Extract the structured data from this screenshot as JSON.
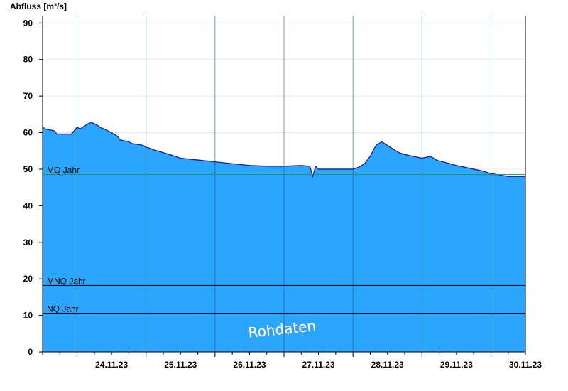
{
  "chart_data": {
    "type": "area",
    "ylabel": "Abfluss [m³/s]",
    "ylim": [
      0,
      92
    ],
    "yticks": [
      0,
      10,
      20,
      30,
      40,
      50,
      60,
      70,
      80,
      90
    ],
    "xlim": [
      "23.11.23 12:00",
      "30.11.23 12:00"
    ],
    "xtick_labels": [
      "24.11.23",
      "25.11.23",
      "26.11.23",
      "27.11.23",
      "28.11.23",
      "29.11.23",
      "30.11.23"
    ],
    "grid": true,
    "colors": {
      "fill": "#2ba6ff",
      "line": "#1a1aa0",
      "mq_line": "#2e8b57",
      "ref_line": "#000000"
    },
    "reference_lines": [
      {
        "label": "MQ Jahr",
        "value": 48.5
      },
      {
        "label": "MNQ Jahr",
        "value": 18.2
      },
      {
        "label": "NQ Jahr",
        "value": 10.6
      }
    ],
    "watermark": "Rohdaten",
    "series": [
      {
        "x": [
          "23.11.23 12:00",
          "23.11.23 13:00",
          "23.11.23 16:00",
          "23.11.23 17:00",
          "23.11.23 18:00",
          "23.11.23 22:00",
          "23.11.23 23:00",
          "24.11.23 00:00",
          "24.11.23 01:00",
          "24.11.23 02:00",
          "24.11.23 04:00",
          "24.11.23 05:00",
          "24.11.23 07:00",
          "24.11.23 08:00",
          "24.11.23 10:00",
          "24.11.23 12:00",
          "24.11.23 14:00",
          "24.11.23 15:00",
          "24.11.23 18:00",
          "24.11.23 19:00",
          "24.11.23 21:00",
          "24.11.23 23:00",
          "25.11.23 00:00",
          "25.11.23 01:00",
          "25.11.23 02:00",
          "25.11.23 03:00",
          "25.11.23 04:00",
          "25.11.23 06:00",
          "25.11.23 09:00",
          "25.11.23 12:00",
          "25.11.23 18:00",
          "26.11.23 00:00",
          "26.11.23 06:00",
          "26.11.23 12:00",
          "26.11.23 18:00",
          "27.11.23 00:00",
          "27.11.23 06:00",
          "27.11.23 09:00",
          "27.11.23 10:00",
          "27.11.23 11:00",
          "27.11.23 12:00",
          "27.11.23 18:00",
          "28.11.23 00:00",
          "28.11.23 02:00",
          "28.11.23 04:00",
          "28.11.23 06:00",
          "28.11.23 08:00",
          "28.11.23 10:00",
          "28.11.23 12:00",
          "28.11.23 14:00",
          "28.11.23 16:00",
          "28.11.23 18:00",
          "28.11.23 21:00",
          "29.11.23 00:00",
          "29.11.23 03:00",
          "29.11.23 04:00",
          "29.11.23 05:00",
          "29.11.23 12:00",
          "29.11.23 18:00",
          "29.11.23 21:00",
          "30.11.23 00:00",
          "30.11.23 06:00",
          "30.11.23 12:00"
        ],
        "values": [
          61.5,
          61.0,
          60.5,
          59.6,
          59.6,
          59.6,
          60.5,
          61.5,
          61.0,
          61.5,
          62.5,
          62.8,
          62.0,
          61.5,
          60.8,
          60.0,
          59.0,
          58.0,
          57.5,
          57.0,
          56.8,
          56.5,
          56.0,
          55.8,
          55.5,
          55.2,
          55.0,
          54.5,
          53.8,
          53.0,
          52.5,
          52.0,
          51.5,
          51.0,
          50.8,
          50.8,
          51.0,
          50.8,
          48.0,
          50.8,
          50.0,
          50.0,
          50.0,
          50.5,
          51.5,
          53.5,
          56.5,
          57.5,
          56.5,
          55.5,
          54.5,
          54.0,
          53.5,
          53.0,
          53.5,
          53.0,
          52.5,
          51.0,
          50.0,
          49.5,
          48.8,
          48.0,
          48.0
        ]
      }
    ]
  }
}
